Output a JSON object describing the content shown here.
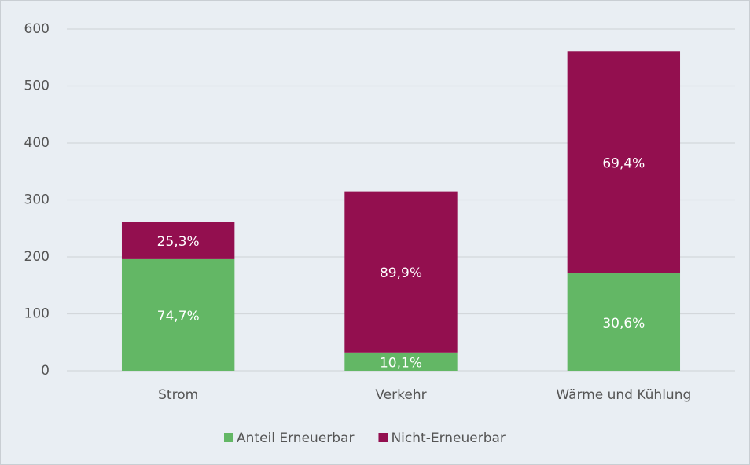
{
  "chart_data": {
    "type": "stacked_bar",
    "categories": [
      "Strom",
      "Verkehr",
      "Wärme und Kühlung"
    ],
    "series": [
      {
        "name": "Anteil Erneuerbar",
        "color": "#63b765",
        "values": [
          196,
          32,
          171
        ],
        "share_labels": [
          "74,7%",
          "10,1%",
          "30,6%"
        ]
      },
      {
        "name": "Nicht-Erneuerbar",
        "color": "#930f4f",
        "values": [
          66,
          283,
          390
        ],
        "share_labels": [
          "25,3%",
          "89,9%",
          "69,4%"
        ]
      }
    ],
    "ylim": [
      0,
      600
    ],
    "yticks": [
      0,
      100,
      200,
      300,
      400,
      500,
      600
    ],
    "grid": true,
    "legend": "bottom"
  }
}
